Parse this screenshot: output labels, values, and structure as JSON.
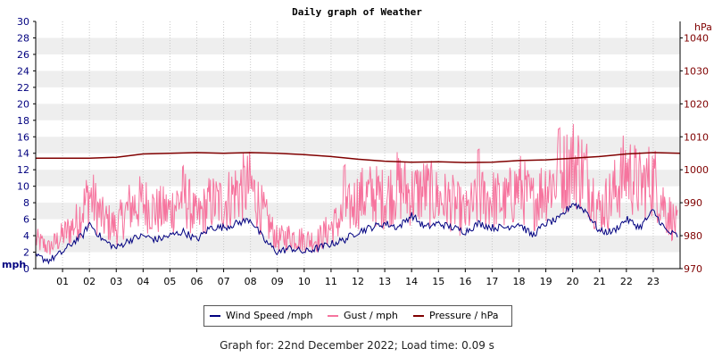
{
  "colors": {
    "left_axis": "#00007f",
    "right_axis": "#7f0000",
    "wind": "#000080",
    "gust": "#f6749e",
    "pressure": "#800000",
    "band": "#eeeeee",
    "grid": "#c8c8c8"
  },
  "chart_data": {
    "type": "line",
    "title": "Daily graph of Weather",
    "x_ticks": [
      "01",
      "02",
      "03",
      "04",
      "05",
      "06",
      "07",
      "08",
      "09",
      "10",
      "11",
      "12",
      "13",
      "14",
      "15",
      "16",
      "17",
      "18",
      "19",
      "20",
      "21",
      "22",
      "23"
    ],
    "xlim": [
      0,
      24
    ],
    "y_left": {
      "label": "mph",
      "lim": [
        0,
        30
      ],
      "ticks": [
        "0",
        "2",
        "4",
        "6",
        "8",
        "10",
        "12",
        "14",
        "16",
        "18",
        "20",
        "22",
        "24",
        "26",
        "28",
        "30"
      ]
    },
    "y_right": {
      "label": "hPa",
      "lim": [
        970,
        1045
      ],
      "ticks": [
        "970",
        "980",
        "990",
        "1000",
        "1010",
        "1020",
        "1030",
        "1040"
      ]
    },
    "grid": true,
    "legend_position": "bottom",
    "series": [
      {
        "name": "Wind Speed /mph",
        "axis": "left",
        "x": [
          0,
          0.5,
          1,
          1.5,
          1.75,
          2,
          2.5,
          3,
          3.5,
          4,
          4.5,
          5,
          5.5,
          6,
          6.5,
          7,
          7.5,
          8,
          8.5,
          9,
          9.5,
          10,
          10.5,
          11,
          11.5,
          12,
          12.5,
          13,
          13.5,
          14,
          14.5,
          15,
          15.5,
          16,
          16.5,
          17,
          17.5,
          18,
          18.5,
          19,
          19.5,
          20,
          20.5,
          21,
          21.5,
          22,
          22.5,
          23,
          23.5,
          23.9
        ],
        "y": [
          1.5,
          1.0,
          2.0,
          3.5,
          4.0,
          5.5,
          3.5,
          2.5,
          3.5,
          4.0,
          3.5,
          4.0,
          4.5,
          3.5,
          5.0,
          5.0,
          5.5,
          6.0,
          3.5,
          2.0,
          2.5,
          2.0,
          2.5,
          3.0,
          3.5,
          4.5,
          5.0,
          5.5,
          5.0,
          6.5,
          5.0,
          5.5,
          5.0,
          4.5,
          5.5,
          5.0,
          5.0,
          5.5,
          4.0,
          5.5,
          6.0,
          8.0,
          7.0,
          4.5,
          4.5,
          6.0,
          5.0,
          7.0,
          4.5,
          4.0
        ]
      },
      {
        "name": "Gust / mph",
        "axis": "left",
        "x": [
          0,
          0.5,
          1,
          1.5,
          2,
          2.5,
          3,
          3.5,
          4,
          4.5,
          5,
          5.5,
          6,
          6.5,
          7,
          7.5,
          8,
          8.5,
          9,
          9.5,
          10,
          10.5,
          11,
          11.5,
          12,
          12.5,
          13,
          13.5,
          14,
          14.5,
          15,
          15.5,
          16,
          16.5,
          17,
          17.5,
          18,
          18.5,
          19,
          19.5,
          20,
          20.5,
          21,
          21.5,
          22,
          22.5,
          23,
          23.5,
          23.9
        ],
        "y": [
          3.5,
          2.5,
          4.0,
          5.5,
          9.0,
          6.0,
          5.0,
          7.5,
          8.0,
          7.0,
          7.0,
          9.0,
          6.0,
          8.0,
          8.0,
          9.5,
          10.0,
          6.5,
          3.5,
          4.0,
          3.5,
          3.5,
          5.0,
          6.5,
          8.5,
          9.0,
          8.5,
          10.0,
          9.0,
          9.5,
          8.5,
          8.0,
          6.5,
          8.5,
          8.5,
          8.0,
          10.0,
          8.0,
          10.0,
          11.0,
          13.0,
          11.5,
          7.0,
          9.0,
          12.0,
          10.0,
          11.0,
          7.0,
          5.0
        ],
        "peaks": [
          11.5,
          16.5,
          19.5
        ]
      },
      {
        "name": "Pressure / hPa",
        "axis": "right",
        "x": [
          0,
          1,
          2,
          3,
          4,
          5,
          6,
          7,
          8,
          9,
          10,
          11,
          12,
          13,
          14,
          15,
          16,
          17,
          18,
          19,
          20,
          21,
          22,
          23,
          24
        ],
        "y": [
          1003.5,
          1003.5,
          1003.5,
          1003.8,
          1004.8,
          1005.0,
          1005.2,
          1005.0,
          1005.2,
          1005.0,
          1004.6,
          1004.0,
          1003.2,
          1002.6,
          1002.3,
          1002.4,
          1002.2,
          1002.3,
          1002.8,
          1003.0,
          1003.5,
          1004.0,
          1004.8,
          1005.2,
          1005.0
        ]
      }
    ]
  },
  "legend": {
    "wind_label": "Wind Speed /mph",
    "gust_label": "Gust / mph",
    "pressure_label": "Pressure / hPa"
  },
  "footer": {
    "text": "Graph for: 22nd December 2022; Load time: 0.09 s"
  }
}
